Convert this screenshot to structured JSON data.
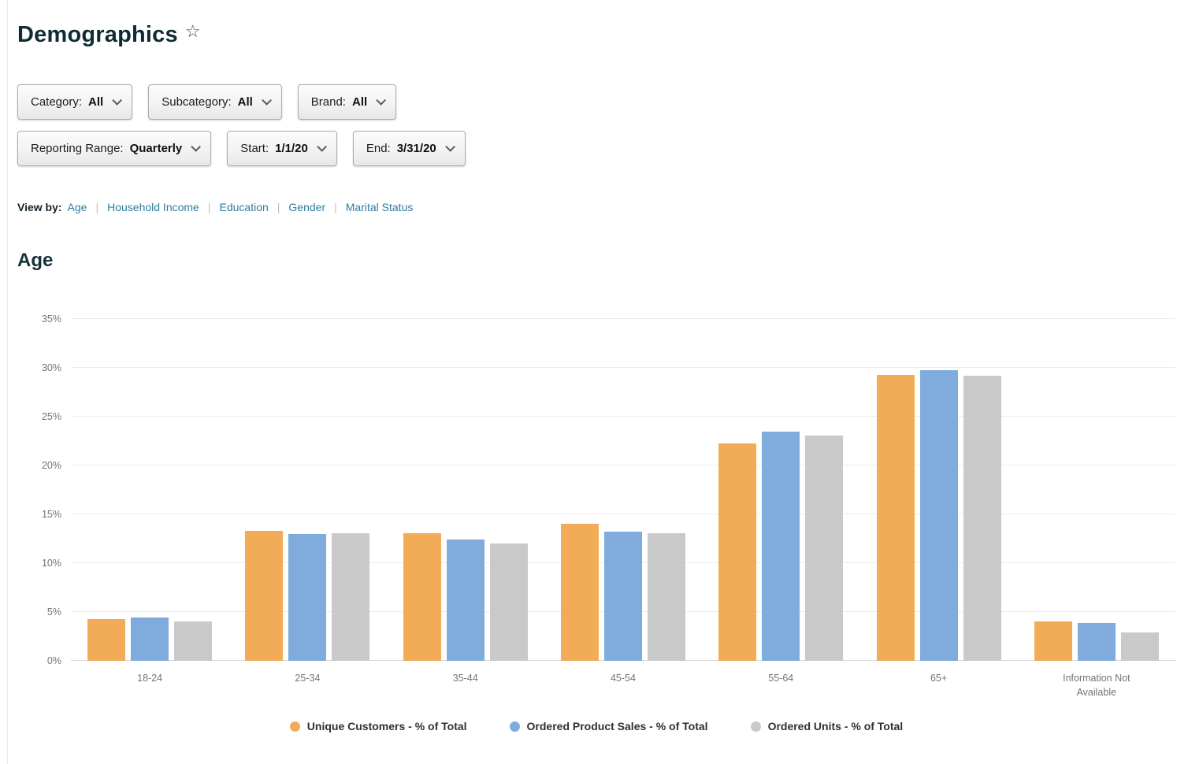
{
  "page": {
    "title": "Demographics",
    "star_icon": "☆"
  },
  "icons": {
    "favorite": "star-outline-icon",
    "dropdown": "chevron-down-icon"
  },
  "filters": {
    "row1": [
      {
        "label": "Category:",
        "value": "All"
      },
      {
        "label": "Subcategory:",
        "value": "All"
      },
      {
        "label": "Brand:",
        "value": "All"
      }
    ],
    "row2": [
      {
        "label": "Reporting Range:",
        "value": "Quarterly"
      },
      {
        "label": "Start:",
        "value": "1/1/20"
      },
      {
        "label": "End:",
        "value": "3/31/20"
      }
    ]
  },
  "viewby": {
    "label": "View by:",
    "divider": "|",
    "links": [
      "Age",
      "Household Income",
      "Education",
      "Gender",
      "Marital Status"
    ]
  },
  "section": {
    "heading": "Age"
  },
  "chart_data": {
    "type": "bar",
    "title": "Age",
    "categories": [
      "18-24",
      "25-34",
      "35-44",
      "45-54",
      "55-64",
      "65+",
      "Information Not Available"
    ],
    "series": [
      {
        "name": "Unique Customers - % of Total",
        "color": "#F2AC57",
        "values": [
          4.3,
          13.3,
          13.1,
          14.0,
          22.3,
          29.3,
          4.0
        ]
      },
      {
        "name": "Ordered Product Sales - % of Total",
        "color": "#7FACDC",
        "values": [
          4.4,
          13.0,
          12.4,
          13.2,
          23.5,
          29.8,
          3.9
        ]
      },
      {
        "name": "Ordered Units - % of Total",
        "color": "#C9C9C9",
        "values": [
          4.0,
          13.1,
          12.0,
          13.1,
          23.1,
          29.2,
          2.9
        ]
      }
    ],
    "xlabel": "",
    "ylabel": "",
    "ylim": [
      0,
      35
    ],
    "yticks": [
      0,
      5,
      10,
      15,
      20,
      25,
      30,
      35
    ],
    "ytick_format": "{v}%",
    "grid": true,
    "legend_position": "bottom"
  }
}
